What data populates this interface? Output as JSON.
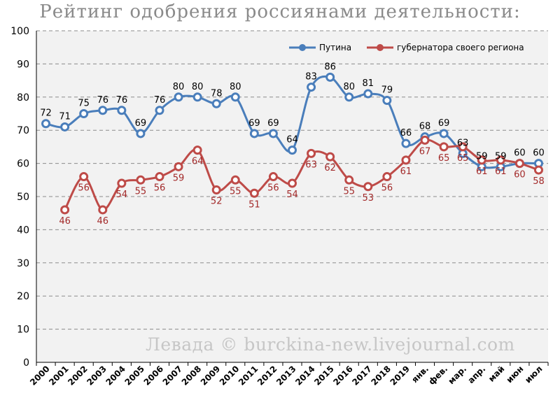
{
  "chart_data": {
    "type": "line",
    "title": "Рейтинг одобрения россиянами деятельности:",
    "categories": [
      "2000",
      "2001",
      "2002",
      "2003",
      "2004",
      "2005",
      "2006",
      "2007",
      "2008",
      "2009",
      "2010",
      "2011",
      "2012",
      "2013",
      "2014",
      "2015",
      "2016",
      "2017",
      "2018",
      "2019",
      "янв.",
      "фев.",
      "мар.",
      "апр.",
      "май",
      "июн",
      "июл"
    ],
    "series": [
      {
        "name": "Путина",
        "color": "#4a7ebb",
        "values": [
          72,
          71,
          75,
          76,
          76,
          69,
          76,
          80,
          80,
          78,
          80,
          69,
          69,
          64,
          83,
          86,
          80,
          81,
          79,
          66,
          68,
          69,
          63,
          59,
          59,
          60,
          60
        ],
        "labels": [
          "72",
          "71",
          "75",
          "76",
          "76",
          "69",
          "76",
          "80",
          "80",
          "78",
          "80",
          "69",
          "69",
          "64",
          "83",
          "86",
          "80",
          "81",
          "79",
          "66",
          "68",
          "69",
          "63",
          "59",
          "59",
          "60",
          "60"
        ]
      },
      {
        "name": "губернатора своего региона",
        "color": "#be4b48",
        "values": [
          null,
          46,
          56,
          46,
          54,
          55,
          56,
          59,
          64,
          52,
          55,
          51,
          56,
          54,
          63,
          62,
          55,
          53,
          56,
          61,
          67,
          65,
          65,
          61,
          61,
          60,
          58
        ],
        "labels": [
          "",
          "46",
          "56",
          "46",
          "54",
          "55",
          "56",
          "59",
          "64",
          "52",
          "55",
          "51",
          "56",
          "54",
          "63",
          "62",
          "55",
          "53",
          "56",
          "61",
          "67",
          "65",
          "65",
          "61",
          "61",
          "60",
          "58"
        ]
      }
    ],
    "ylim": [
      0,
      100
    ],
    "yticks": [
      "0",
      "10",
      "20",
      "30",
      "40",
      "50",
      "60",
      "70",
      "80",
      "90",
      "100"
    ],
    "grid": true,
    "legend": "top-right",
    "annotation": "Левада © burckina-new.livejournal.com"
  }
}
